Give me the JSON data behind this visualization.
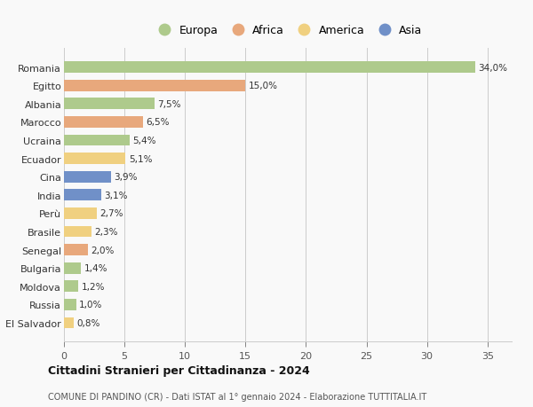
{
  "categories": [
    "Romania",
    "Egitto",
    "Albania",
    "Marocco",
    "Ucraina",
    "Ecuador",
    "Cina",
    "India",
    "Perù",
    "Brasile",
    "Senegal",
    "Bulgaria",
    "Moldova",
    "Russia",
    "El Salvador"
  ],
  "values": [
    34.0,
    15.0,
    7.5,
    6.5,
    5.4,
    5.1,
    3.9,
    3.1,
    2.7,
    2.3,
    2.0,
    1.4,
    1.2,
    1.0,
    0.8
  ],
  "labels": [
    "34,0%",
    "15,0%",
    "7,5%",
    "6,5%",
    "5,4%",
    "5,1%",
    "3,9%",
    "3,1%",
    "2,7%",
    "2,3%",
    "2,0%",
    "1,4%",
    "1,2%",
    "1,0%",
    "0,8%"
  ],
  "continents": [
    "Europa",
    "Africa",
    "Europa",
    "Africa",
    "Europa",
    "America",
    "Asia",
    "Asia",
    "America",
    "America",
    "Africa",
    "Europa",
    "Europa",
    "Europa",
    "America"
  ],
  "continent_colors": {
    "Europa": "#aeca8c",
    "Africa": "#e8a87c",
    "America": "#f0d080",
    "Asia": "#7090c8"
  },
  "legend_items": [
    "Europa",
    "Africa",
    "America",
    "Asia"
  ],
  "legend_colors": [
    "#aeca8c",
    "#e8a87c",
    "#f0d080",
    "#7090c8"
  ],
  "xlim": [
    0,
    37
  ],
  "xticks": [
    0,
    5,
    10,
    15,
    20,
    25,
    30,
    35
  ],
  "title": "Cittadini Stranieri per Cittadinanza - 2024",
  "subtitle": "COMUNE DI PANDINO (CR) - Dati ISTAT al 1° gennaio 2024 - Elaborazione TUTTITALIA.IT",
  "background_color": "#f9f9f9",
  "grid_color": "#cccccc",
  "bar_height": 0.62
}
